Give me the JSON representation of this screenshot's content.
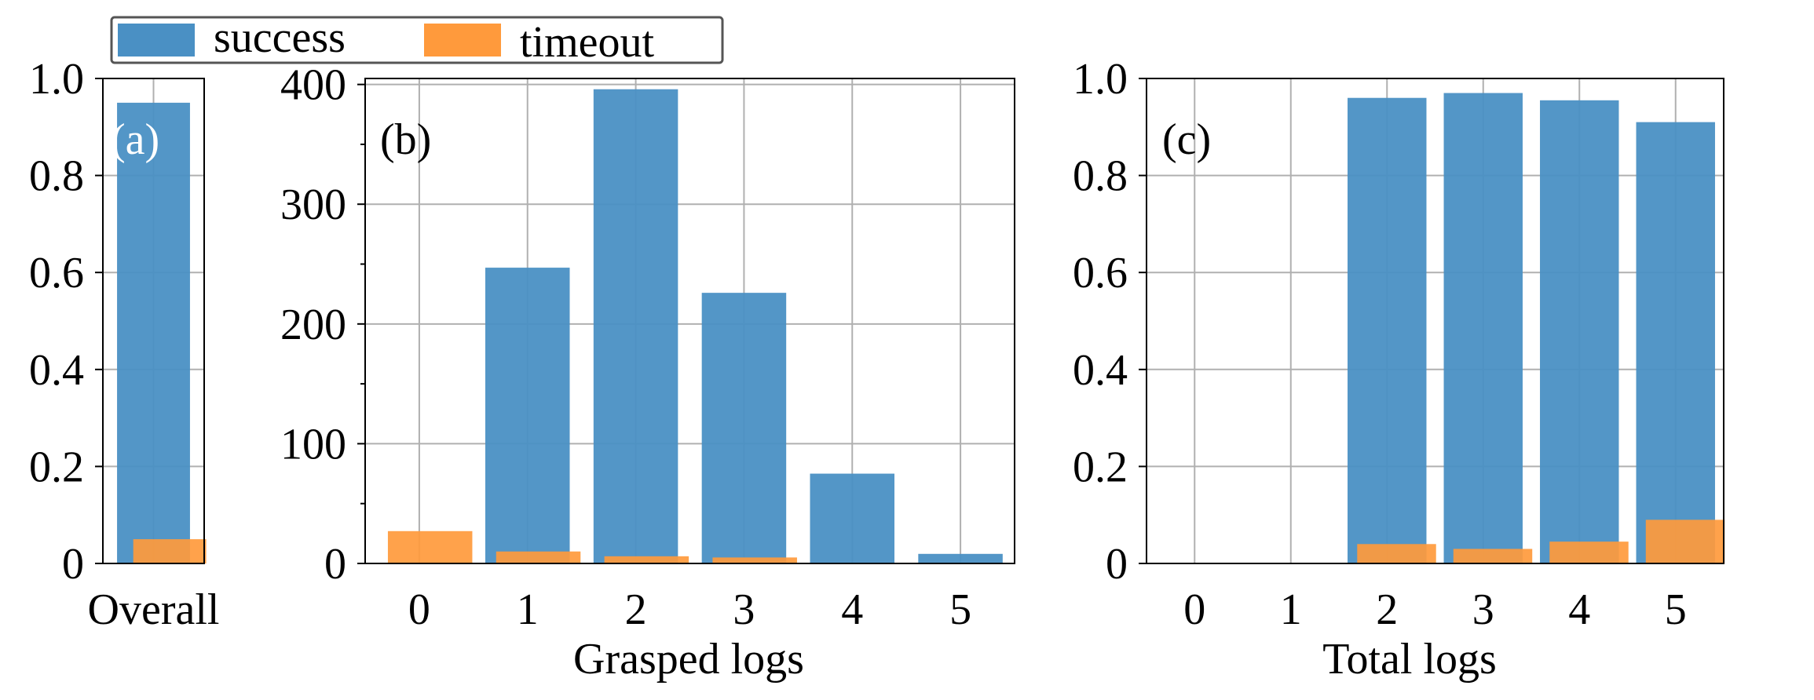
{
  "legend": {
    "position": "top-left",
    "entries": [
      {
        "label": "success",
        "color": "#4a90c4"
      },
      {
        "label": "timeout",
        "color": "#ff9a3c"
      }
    ]
  },
  "chart_data": [
    {
      "type": "bar",
      "panel_label": "(a)",
      "categories": [
        "Overall"
      ],
      "series": [
        {
          "name": "success",
          "values": [
            0.95
          ]
        },
        {
          "name": "timeout",
          "values": [
            0.05
          ]
        }
      ],
      "xlabel": "",
      "ylabel": "",
      "ylim": [
        0,
        1.0
      ],
      "yticks": [
        "0",
        "0.2",
        "0.4",
        "0.6",
        "0.8",
        "1.0"
      ],
      "grid": true
    },
    {
      "type": "bar",
      "panel_label": "(b)",
      "categories": [
        "0",
        "1",
        "2",
        "3",
        "4",
        "5"
      ],
      "series": [
        {
          "name": "success",
          "values": [
            0,
            247,
            396,
            226,
            75,
            8
          ]
        },
        {
          "name": "timeout",
          "values": [
            27,
            10,
            6,
            5,
            0,
            0
          ]
        }
      ],
      "xlabel": "Grasped logs",
      "ylabel": "",
      "ylim": [
        0,
        405
      ],
      "yticks": [
        "0",
        "100",
        "200",
        "300",
        "400"
      ],
      "grid": true
    },
    {
      "type": "bar",
      "panel_label": "(c)",
      "categories": [
        "0",
        "1",
        "2",
        "3",
        "4",
        "5"
      ],
      "series": [
        {
          "name": "success",
          "values": [
            0,
            0,
            0.96,
            0.97,
            0.955,
            0.91
          ]
        },
        {
          "name": "timeout",
          "values": [
            0,
            0,
            0.04,
            0.03,
            0.045,
            0.09
          ]
        }
      ],
      "xlabel": "Total logs",
      "ylabel": "",
      "ylim": [
        0,
        1.0
      ],
      "yticks": [
        "0",
        "0.2",
        "0.4",
        "0.6",
        "0.8",
        "1.0"
      ],
      "grid": true
    }
  ]
}
